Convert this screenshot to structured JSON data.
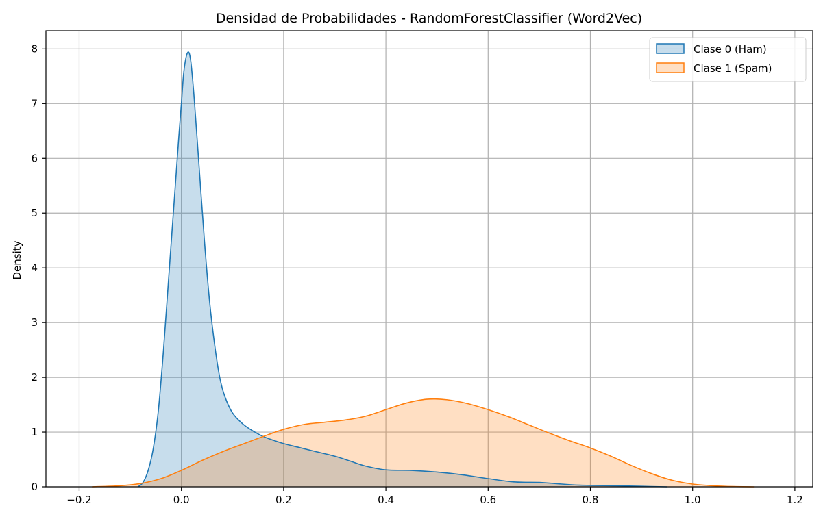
{
  "chart_data": {
    "type": "area",
    "title": "Densidad de Probabilidades - RandomForestClassifier (Word2Vec)",
    "xlabel": "",
    "ylabel": "Density",
    "xlim": [
      -0.265,
      1.235
    ],
    "ylim": [
      0,
      8.33
    ],
    "xticks": [
      -0.2,
      0.0,
      0.2,
      0.4,
      0.6,
      0.8,
      1.0,
      1.2
    ],
    "xtick_labels": [
      "−0.2",
      "0.0",
      "0.2",
      "0.4",
      "0.6",
      "0.8",
      "1.0",
      "1.2"
    ],
    "yticks": [
      0,
      1,
      2,
      3,
      4,
      5,
      6,
      7,
      8
    ],
    "ytick_labels": [
      "0",
      "1",
      "2",
      "3",
      "4",
      "5",
      "6",
      "7",
      "8"
    ],
    "grid": true,
    "legend_position": "top-right",
    "series": [
      {
        "name": "Clase 0 (Ham)",
        "color": "#1f77b4",
        "points": [
          [
            -0.085,
            0.0
          ],
          [
            -0.075,
            0.08
          ],
          [
            -0.065,
            0.3
          ],
          [
            -0.055,
            0.7
          ],
          [
            -0.045,
            1.4
          ],
          [
            -0.035,
            2.5
          ],
          [
            -0.025,
            3.8
          ],
          [
            -0.015,
            5.1
          ],
          [
            -0.005,
            6.4
          ],
          [
            0.0,
            7.0
          ],
          [
            0.005,
            7.6
          ],
          [
            0.012,
            7.93
          ],
          [
            0.018,
            7.8
          ],
          [
            0.025,
            7.1
          ],
          [
            0.035,
            5.8
          ],
          [
            0.045,
            4.5
          ],
          [
            0.055,
            3.4
          ],
          [
            0.065,
            2.6
          ],
          [
            0.075,
            2.0
          ],
          [
            0.085,
            1.65
          ],
          [
            0.1,
            1.35
          ],
          [
            0.12,
            1.15
          ],
          [
            0.14,
            1.02
          ],
          [
            0.16,
            0.92
          ],
          [
            0.18,
            0.85
          ],
          [
            0.2,
            0.79
          ],
          [
            0.23,
            0.72
          ],
          [
            0.26,
            0.65
          ],
          [
            0.3,
            0.56
          ],
          [
            0.33,
            0.47
          ],
          [
            0.36,
            0.38
          ],
          [
            0.4,
            0.31
          ],
          [
            0.45,
            0.3
          ],
          [
            0.5,
            0.27
          ],
          [
            0.55,
            0.22
          ],
          [
            0.6,
            0.15
          ],
          [
            0.65,
            0.09
          ],
          [
            0.7,
            0.08
          ],
          [
            0.73,
            0.06
          ],
          [
            0.78,
            0.03
          ],
          [
            0.85,
            0.02
          ],
          [
            0.9,
            0.01
          ],
          [
            0.95,
            0.0
          ]
        ]
      },
      {
        "name": "Clase 1 (Spam)",
        "color": "#ff7f0e",
        "points": [
          [
            -0.175,
            0.0
          ],
          [
            -0.12,
            0.02
          ],
          [
            -0.08,
            0.06
          ],
          [
            -0.04,
            0.15
          ],
          [
            0.0,
            0.3
          ],
          [
            0.04,
            0.48
          ],
          [
            0.08,
            0.64
          ],
          [
            0.12,
            0.78
          ],
          [
            0.16,
            0.92
          ],
          [
            0.2,
            1.05
          ],
          [
            0.24,
            1.14
          ],
          [
            0.28,
            1.18
          ],
          [
            0.32,
            1.22
          ],
          [
            0.36,
            1.29
          ],
          [
            0.4,
            1.41
          ],
          [
            0.44,
            1.53
          ],
          [
            0.48,
            1.6
          ],
          [
            0.52,
            1.59
          ],
          [
            0.56,
            1.52
          ],
          [
            0.6,
            1.41
          ],
          [
            0.64,
            1.28
          ],
          [
            0.68,
            1.13
          ],
          [
            0.72,
            0.98
          ],
          [
            0.76,
            0.84
          ],
          [
            0.8,
            0.71
          ],
          [
            0.84,
            0.56
          ],
          [
            0.88,
            0.39
          ],
          [
            0.92,
            0.24
          ],
          [
            0.96,
            0.12
          ],
          [
            1.0,
            0.05
          ],
          [
            1.04,
            0.02
          ],
          [
            1.08,
            0.005
          ],
          [
            1.12,
            0.0
          ]
        ]
      }
    ]
  }
}
